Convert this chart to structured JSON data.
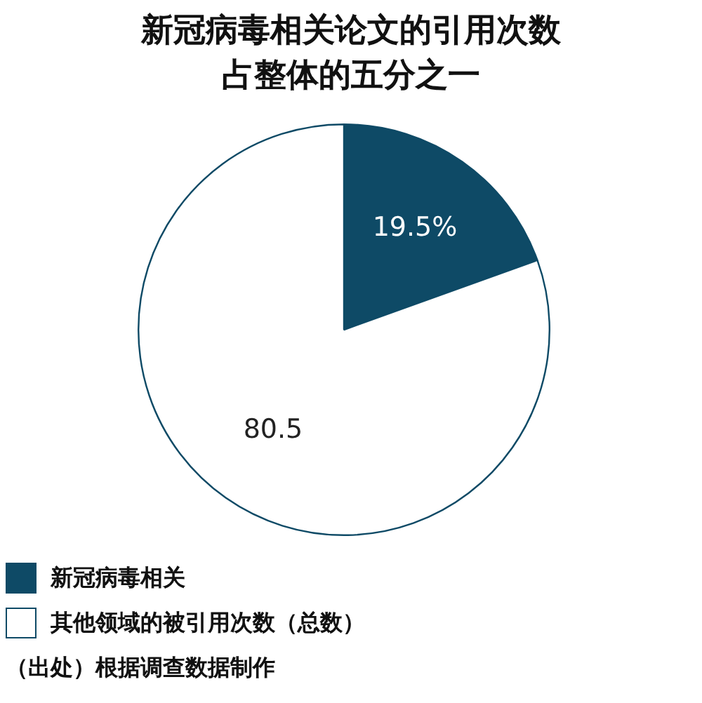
{
  "chart_data": {
    "type": "pie",
    "title": "新冠病毒相关论文的引用次数占整体的五分之一",
    "categories": [
      "新冠病毒相关",
      "其他领域的被引用次数（总数）"
    ],
    "values": [
      19.5,
      80.5
    ],
    "colors": [
      "#0e4a66",
      "#ffffff"
    ],
    "value_labels": [
      "19.5%",
      "80.5"
    ],
    "legend": "bottom left",
    "annotations": [
      "（出处）根据调查数据制作"
    ]
  }
}
